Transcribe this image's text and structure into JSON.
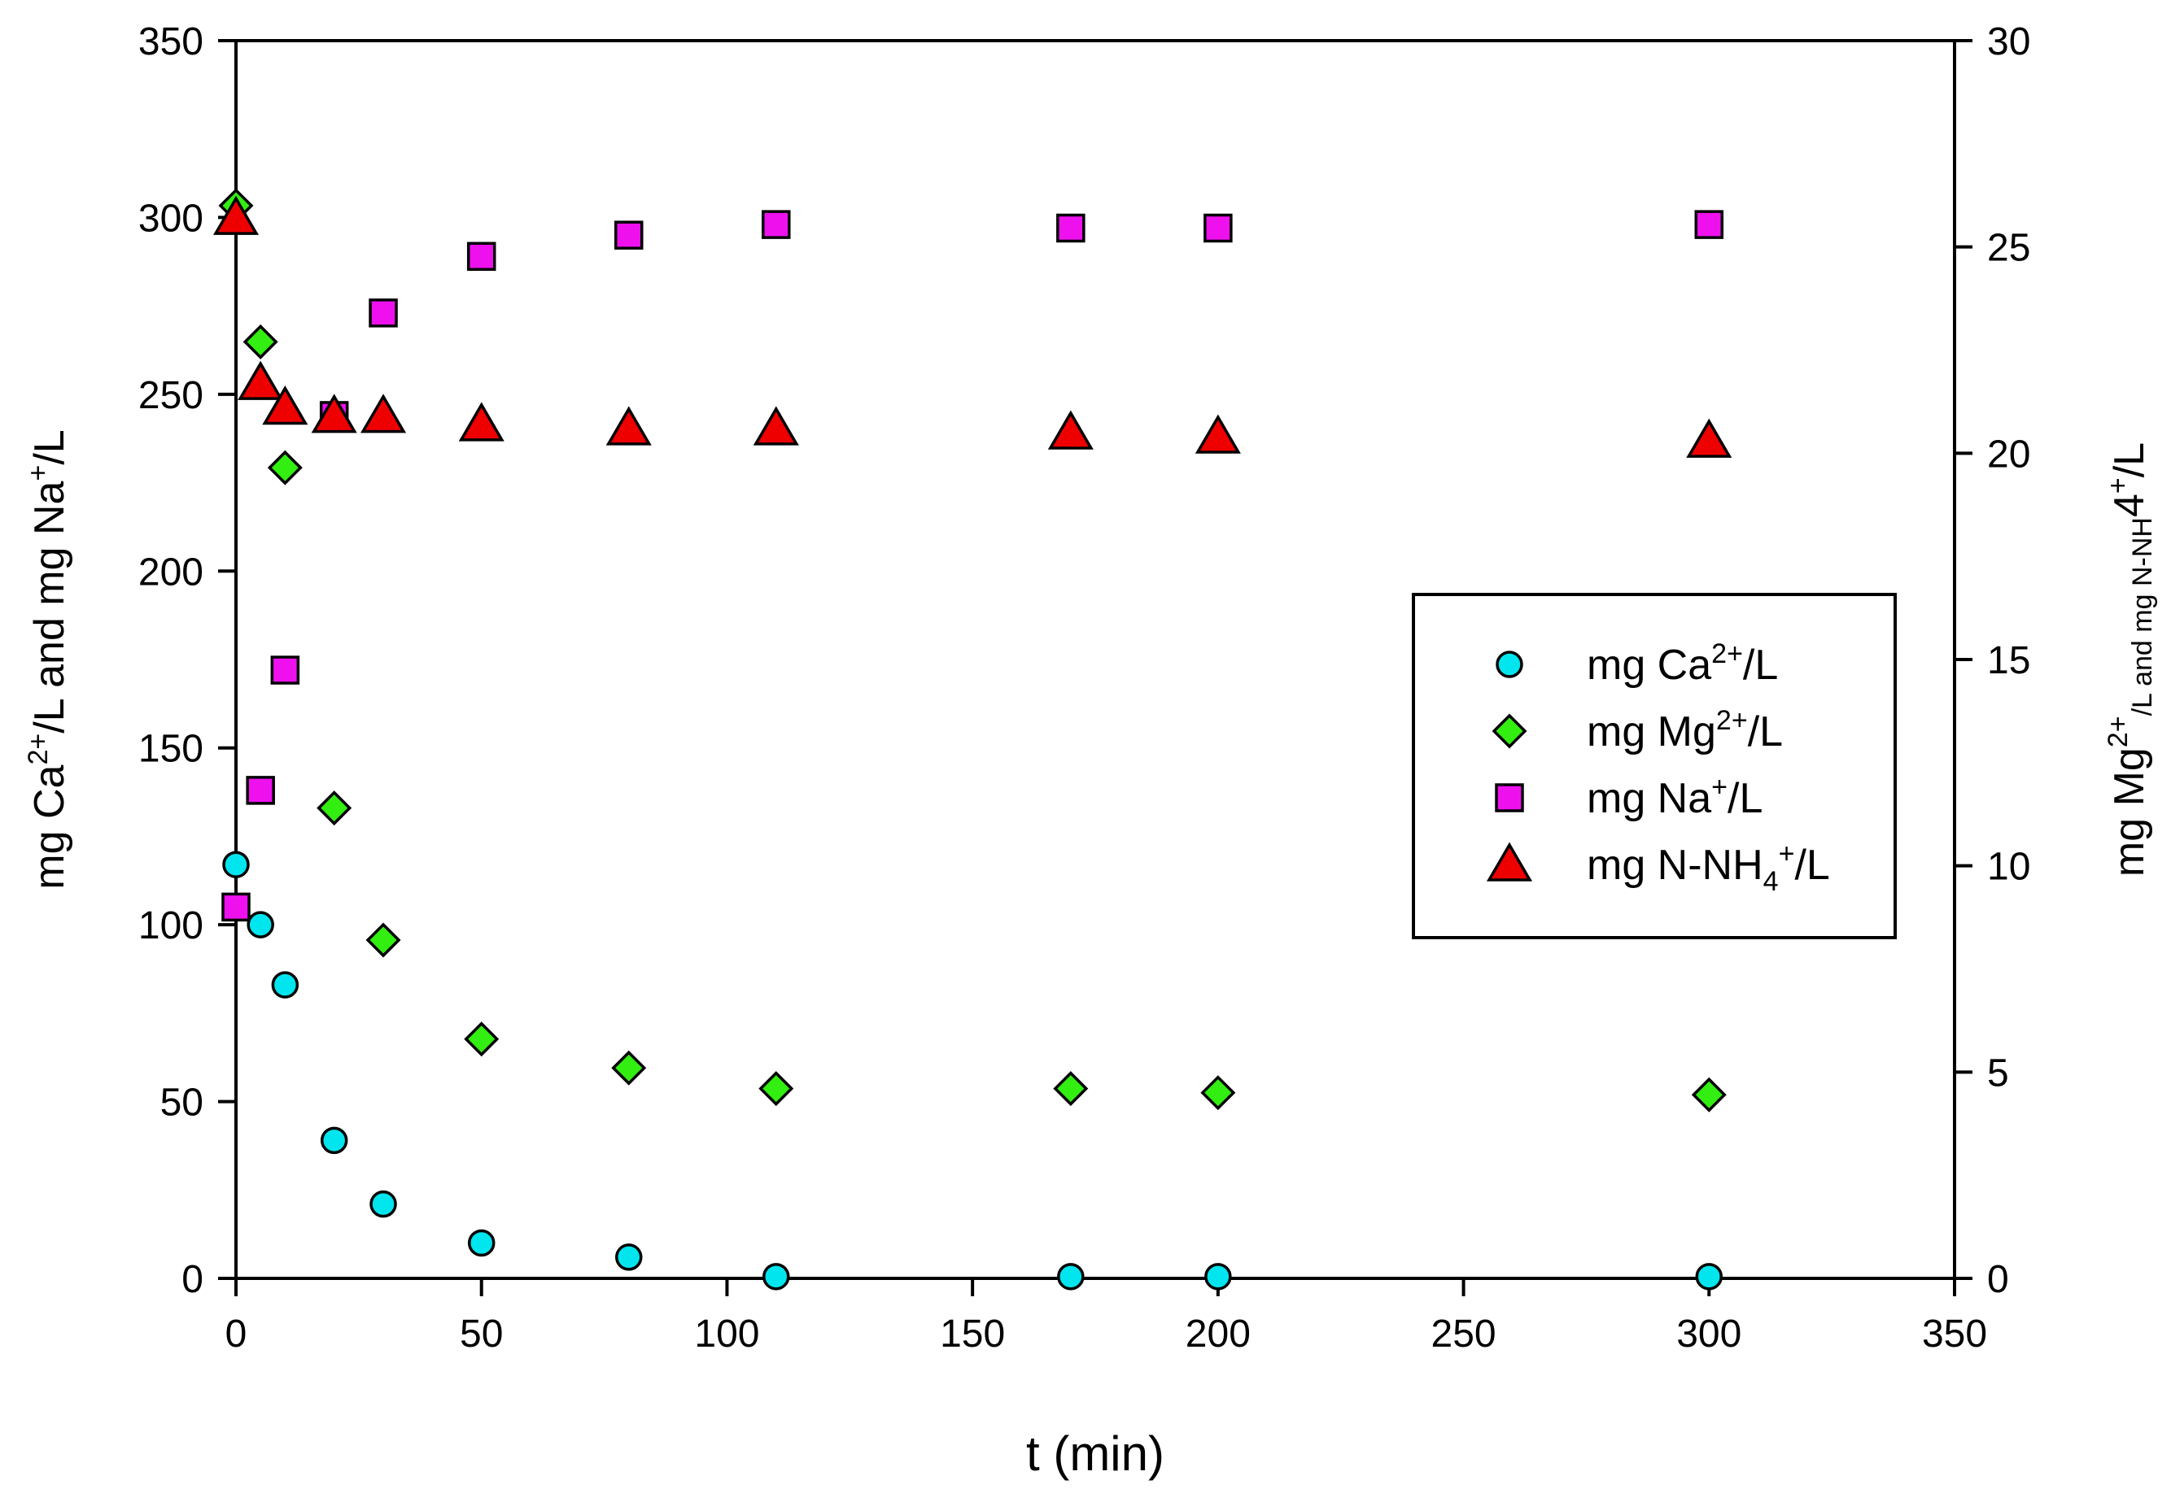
{
  "chart_data": {
    "type": "scatter",
    "xlabel": "t (min)",
    "ylabel_left_parts": [
      "mg Ca",
      "2+",
      "/L and mg Na",
      "+",
      "/L"
    ],
    "ylabel_right_parts": [
      "mg Mg",
      "2+",
      "/L and mg N-NH",
      "4",
      "+",
      "/L"
    ],
    "xlim": [
      0,
      350
    ],
    "ylim_left": [
      0,
      350
    ],
    "ylim_right": [
      0,
      30
    ],
    "x_ticks": [
      "0",
      "50",
      "100",
      "150",
      "200",
      "250",
      "300",
      "350"
    ],
    "y_left_ticks": [
      "0",
      "50",
      "100",
      "150",
      "200",
      "250",
      "300",
      "350"
    ],
    "y_right_ticks": [
      "0",
      "5",
      "10",
      "15",
      "20",
      "25",
      "30"
    ],
    "series": [
      {
        "name": "mg Ca2+/L",
        "legend_parts": [
          "mg Ca",
          "2+",
          "/L"
        ],
        "marker": "circle",
        "color": "#00e5ee",
        "axis": "left",
        "x": [
          0,
          5,
          10,
          20,
          30,
          50,
          80,
          110,
          170,
          200,
          300
        ],
        "y": [
          117,
          100,
          83,
          39,
          21,
          10,
          6,
          0.5,
          0.5,
          0.5,
          0.5
        ]
      },
      {
        "name": "mg Mg2+/L",
        "legend_parts": [
          "mg Mg",
          "2+",
          "/L"
        ],
        "marker": "diamond",
        "color": "#33ee11",
        "axis": "right",
        "x": [
          0,
          5,
          10,
          20,
          30,
          50,
          80,
          110,
          170,
          200,
          300
        ],
        "y": [
          26.0,
          22.7,
          19.65,
          11.4,
          8.2,
          5.8,
          5.1,
          4.6,
          4.6,
          4.5,
          4.45
        ]
      },
      {
        "name": "mg Na+/L",
        "legend_parts": [
          "mg Na",
          "+",
          "/L"
        ],
        "marker": "square",
        "color": "#ee11ee",
        "axis": "left",
        "x": [
          0,
          5,
          10,
          20,
          30,
          50,
          80,
          110,
          170,
          200,
          300
        ],
        "y": [
          105,
          138,
          172,
          244,
          273,
          289,
          295,
          298,
          297,
          297,
          298
        ]
      },
      {
        "name": "mg N-NH4+/L",
        "legend_parts": [
          "mg N-NH",
          "4",
          "+",
          "/L"
        ],
        "marker": "triangle",
        "color": "#ee0000",
        "axis": "right",
        "x": [
          0,
          5,
          10,
          20,
          30,
          50,
          80,
          110,
          170,
          200,
          300
        ],
        "y": [
          25.7,
          21.7,
          21.1,
          20.9,
          20.9,
          20.7,
          20.6,
          20.6,
          20.5,
          20.4,
          20.3
        ]
      }
    ]
  }
}
